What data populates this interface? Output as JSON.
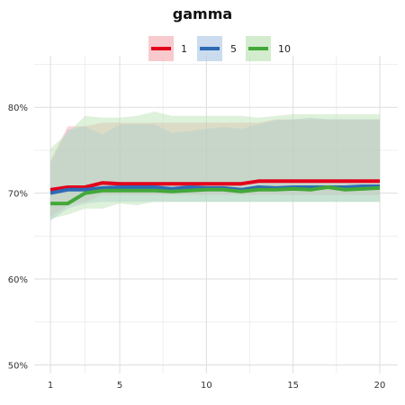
{
  "chart_data": {
    "type": "line",
    "title": "gamma",
    "legend_position": "top",
    "xlabel": "",
    "ylabel": "",
    "grid": true,
    "xlim": [
      1,
      20
    ],
    "ylim": [
      0.49,
      0.86
    ],
    "x_ticks": [
      1,
      5,
      10,
      15,
      20
    ],
    "y_ticks": [
      0.5,
      0.6,
      0.7,
      0.8
    ],
    "y_tick_labels": [
      "50%",
      "60%",
      "70%",
      "80%"
    ],
    "x": [
      1,
      2,
      3,
      4,
      5,
      6,
      7,
      8,
      9,
      10,
      11,
      12,
      13,
      14,
      15,
      16,
      17,
      18,
      19,
      20
    ],
    "series": [
      {
        "name": "1",
        "color": "#e3001b",
        "band_color": "#f4a6ae",
        "values": [
          0.704,
          0.707,
          0.707,
          0.712,
          0.711,
          0.711,
          0.711,
          0.711,
          0.711,
          0.711,
          0.711,
          0.711,
          0.714,
          0.714,
          0.714,
          0.714,
          0.714,
          0.714,
          0.714,
          0.714
        ],
        "upper": [
          0.738,
          0.778,
          0.778,
          0.782,
          0.782,
          0.782,
          0.782,
          0.782,
          0.782,
          0.782,
          0.782,
          0.782,
          0.782,
          0.786,
          0.786,
          0.786,
          0.786,
          0.786,
          0.786,
          0.786
        ],
        "lower": [
          0.672,
          0.686,
          0.69,
          0.698,
          0.698,
          0.698,
          0.698,
          0.698,
          0.698,
          0.698,
          0.698,
          0.698,
          0.698,
          0.698,
          0.698,
          0.698,
          0.698,
          0.698,
          0.698,
          0.698
        ]
      },
      {
        "name": "5",
        "color": "#2e6bb5",
        "band_color": "#a9c4e4",
        "values": [
          0.7,
          0.704,
          0.704,
          0.706,
          0.707,
          0.707,
          0.707,
          0.705,
          0.707,
          0.706,
          0.706,
          0.704,
          0.707,
          0.706,
          0.707,
          0.707,
          0.707,
          0.707,
          0.708,
          0.708
        ],
        "upper": [
          0.735,
          0.774,
          0.778,
          0.768,
          0.78,
          0.78,
          0.78,
          0.77,
          0.772,
          0.775,
          0.777,
          0.775,
          0.78,
          0.785,
          0.786,
          0.788,
          0.786,
          0.786,
          0.786,
          0.786
        ],
        "lower": [
          0.668,
          0.682,
          0.688,
          0.69,
          0.69,
          0.69,
          0.69,
          0.69,
          0.69,
          0.69,
          0.69,
          0.69,
          0.69,
          0.69,
          0.69,
          0.69,
          0.69,
          0.69,
          0.69,
          0.69
        ]
      },
      {
        "name": "10",
        "color": "#43a839",
        "band_color": "#b5dfae",
        "values": [
          0.688,
          0.688,
          0.7,
          0.703,
          0.703,
          0.703,
          0.703,
          0.702,
          0.703,
          0.704,
          0.704,
          0.702,
          0.704,
          0.704,
          0.705,
          0.704,
          0.707,
          0.704,
          0.705,
          0.706
        ],
        "upper": [
          0.752,
          0.77,
          0.79,
          0.788,
          0.788,
          0.79,
          0.795,
          0.79,
          0.79,
          0.79,
          0.79,
          0.79,
          0.788,
          0.79,
          0.792,
          0.792,
          0.792,
          0.792,
          0.792,
          0.792
        ],
        "lower": [
          0.67,
          0.675,
          0.682,
          0.682,
          0.688,
          0.686,
          0.69,
          0.69,
          0.69,
          0.69,
          0.69,
          0.69,
          0.69,
          0.69,
          0.69,
          0.69,
          0.69,
          0.69,
          0.69,
          0.69
        ]
      }
    ]
  }
}
